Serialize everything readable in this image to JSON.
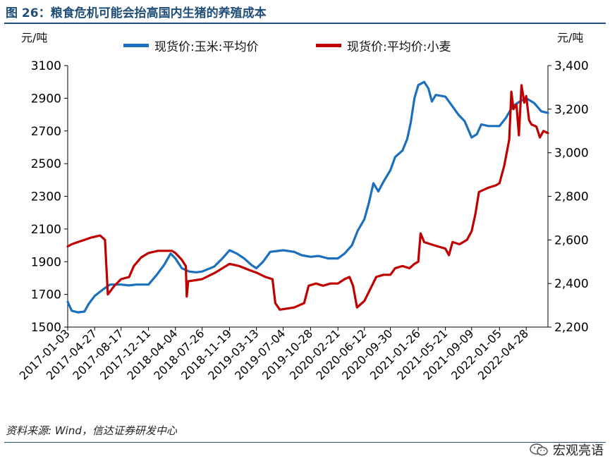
{
  "figure": {
    "title": "图 26：粮食危机可能会抬高国内生猪的养殖成本",
    "source": "资料来源: Wind，信达证券研发中心",
    "brand": "宏观亮语",
    "brand_icon": "wechat-icon"
  },
  "chart_data": {
    "type": "line",
    "left_unit": "元/吨",
    "right_unit": "元/吨",
    "left_ylim": [
      1500,
      3100
    ],
    "left_ticks": [
      "1500",
      "1700",
      "1900",
      "2100",
      "2300",
      "2500",
      "2700",
      "2900",
      "3100"
    ],
    "right_ylim": [
      2200,
      3400
    ],
    "right_ticks": [
      "2,200",
      "2,400",
      "2,600",
      "2,800",
      "3,000",
      "3,200",
      "3,400"
    ],
    "x_range": [
      "2017-01-03",
      "2022-07-29"
    ],
    "x_ticks": [
      "2017-01-03",
      "2017-04-27",
      "2017-08-17",
      "2017-12-11",
      "2018-04-04",
      "2018-07-26",
      "2018-11-19",
      "2019-03-13",
      "2019-07-04",
      "2019-10-28",
      "2020-02-21",
      "2020-06-12",
      "2020-09-30",
      "2021-01-26",
      "2021-05-21",
      "2021-09-09",
      "2022-01-05",
      "2022-04-28"
    ],
    "legend_position": "top",
    "grid": false,
    "series": [
      {
        "name": "现货价:玉米:平均价",
        "axis": "left",
        "color": "#1b6fbd",
        "points": [
          [
            "2017-01-03",
            1655
          ],
          [
            "2017-01-20",
            1600
          ],
          [
            "2017-02-15",
            1590
          ],
          [
            "2017-03-15",
            1595
          ],
          [
            "2017-04-01",
            1640
          ],
          [
            "2017-04-27",
            1690
          ],
          [
            "2017-06-01",
            1730
          ],
          [
            "2017-07-01",
            1760
          ],
          [
            "2017-08-17",
            1760
          ],
          [
            "2017-09-20",
            1755
          ],
          [
            "2017-10-20",
            1760
          ],
          [
            "2017-12-11",
            1760
          ],
          [
            "2018-01-15",
            1820
          ],
          [
            "2018-02-15",
            1880
          ],
          [
            "2018-03-15",
            1950
          ],
          [
            "2018-04-04",
            1920
          ],
          [
            "2018-05-01",
            1860
          ],
          [
            "2018-06-01",
            1840
          ],
          [
            "2018-07-01",
            1835
          ],
          [
            "2018-07-26",
            1840
          ],
          [
            "2018-09-15",
            1870
          ],
          [
            "2018-10-20",
            1920
          ],
          [
            "2018-11-19",
            1970
          ],
          [
            "2018-12-20",
            1950
          ],
          [
            "2019-01-20",
            1920
          ],
          [
            "2019-02-20",
            1880
          ],
          [
            "2019-03-13",
            1860
          ],
          [
            "2019-04-10",
            1900
          ],
          [
            "2019-05-10",
            1960
          ],
          [
            "2019-07-04",
            1970
          ],
          [
            "2019-08-20",
            1960
          ],
          [
            "2019-09-20",
            1940
          ],
          [
            "2019-10-28",
            1930
          ],
          [
            "2019-12-01",
            1935
          ],
          [
            "2020-01-10",
            1920
          ],
          [
            "2020-02-21",
            1920
          ],
          [
            "2020-03-20",
            1950
          ],
          [
            "2020-04-20",
            2000
          ],
          [
            "2020-05-15",
            2090
          ],
          [
            "2020-06-12",
            2160
          ],
          [
            "2020-07-01",
            2260
          ],
          [
            "2020-07-20",
            2380
          ],
          [
            "2020-08-10",
            2330
          ],
          [
            "2020-09-01",
            2390
          ],
          [
            "2020-09-30",
            2460
          ],
          [
            "2020-10-20",
            2540
          ],
          [
            "2020-11-20",
            2580
          ],
          [
            "2020-12-10",
            2650
          ],
          [
            "2020-12-25",
            2750
          ],
          [
            "2021-01-10",
            2900
          ],
          [
            "2021-01-26",
            2980
          ],
          [
            "2021-02-20",
            3000
          ],
          [
            "2021-03-10",
            2960
          ],
          [
            "2021-03-25",
            2880
          ],
          [
            "2021-04-10",
            2920
          ],
          [
            "2021-05-21",
            2910
          ],
          [
            "2021-06-15",
            2860
          ],
          [
            "2021-07-15",
            2800
          ],
          [
            "2021-08-10",
            2760
          ],
          [
            "2021-09-09",
            2660
          ],
          [
            "2021-10-01",
            2680
          ],
          [
            "2021-10-20",
            2740
          ],
          [
            "2021-11-20",
            2730
          ],
          [
            "2022-01-05",
            2730
          ],
          [
            "2022-02-01",
            2780
          ],
          [
            "2022-03-01",
            2850
          ],
          [
            "2022-04-01",
            2880
          ],
          [
            "2022-04-28",
            2900
          ],
          [
            "2022-06-01",
            2870
          ],
          [
            "2022-07-01",
            2820
          ],
          [
            "2022-07-29",
            2810
          ]
        ]
      },
      {
        "name": "现货价:平均价:小麦",
        "axis": "right",
        "color": "#c00000",
        "points": [
          [
            "2017-01-03",
            2570
          ],
          [
            "2017-01-20",
            2580
          ],
          [
            "2017-02-15",
            2590
          ],
          [
            "2017-03-15",
            2600
          ],
          [
            "2017-04-10",
            2610
          ],
          [
            "2017-05-20",
            2620
          ],
          [
            "2017-06-10",
            2600
          ],
          [
            "2017-06-22",
            2350
          ],
          [
            "2017-07-20",
            2390
          ],
          [
            "2017-08-17",
            2420
          ],
          [
            "2017-09-20",
            2430
          ],
          [
            "2017-10-10",
            2480
          ],
          [
            "2017-11-10",
            2520
          ],
          [
            "2017-12-11",
            2540
          ],
          [
            "2018-01-20",
            2550
          ],
          [
            "2018-03-20",
            2550
          ],
          [
            "2018-04-04",
            2540
          ],
          [
            "2018-04-30",
            2510
          ],
          [
            "2018-05-18",
            2480
          ],
          [
            "2018-05-22",
            2340
          ],
          [
            "2018-05-28",
            2410
          ],
          [
            "2018-07-26",
            2420
          ],
          [
            "2018-09-20",
            2450
          ],
          [
            "2018-11-19",
            2490
          ],
          [
            "2018-12-30",
            2480
          ],
          [
            "2019-02-15",
            2460
          ],
          [
            "2019-03-13",
            2450
          ],
          [
            "2019-04-20",
            2430
          ],
          [
            "2019-05-20",
            2420
          ],
          [
            "2019-06-01",
            2310
          ],
          [
            "2019-06-20",
            2280
          ],
          [
            "2019-08-20",
            2290
          ],
          [
            "2019-10-01",
            2310
          ],
          [
            "2019-10-20",
            2390
          ],
          [
            "2019-11-20",
            2400
          ],
          [
            "2019-12-20",
            2390
          ],
          [
            "2020-01-20",
            2400
          ],
          [
            "2020-02-21",
            2400
          ],
          [
            "2020-03-20",
            2420
          ],
          [
            "2020-04-10",
            2430
          ],
          [
            "2020-04-25",
            2390
          ],
          [
            "2020-05-12",
            2290
          ],
          [
            "2020-06-12",
            2320
          ],
          [
            "2020-07-05",
            2370
          ],
          [
            "2020-08-01",
            2430
          ],
          [
            "2020-09-01",
            2440
          ],
          [
            "2020-09-30",
            2440
          ],
          [
            "2020-10-20",
            2470
          ],
          [
            "2020-11-20",
            2480
          ],
          [
            "2020-12-20",
            2470
          ],
          [
            "2021-01-10",
            2490
          ],
          [
            "2021-01-26",
            2500
          ],
          [
            "2021-02-05",
            2630
          ],
          [
            "2021-02-20",
            2590
          ],
          [
            "2021-03-20",
            2580
          ],
          [
            "2021-04-20",
            2570
          ],
          [
            "2021-05-21",
            2560
          ],
          [
            "2021-06-05",
            2530
          ],
          [
            "2021-06-20",
            2590
          ],
          [
            "2021-07-20",
            2580
          ],
          [
            "2021-08-20",
            2600
          ],
          [
            "2021-09-09",
            2640
          ],
          [
            "2021-09-25",
            2720
          ],
          [
            "2021-10-10",
            2820
          ],
          [
            "2021-11-20",
            2840
          ],
          [
            "2021-12-20",
            2850
          ],
          [
            "2022-01-05",
            2860
          ],
          [
            "2022-01-25",
            2940
          ],
          [
            "2022-02-15",
            3060
          ],
          [
            "2022-02-24",
            3280
          ],
          [
            "2022-03-05",
            3200
          ],
          [
            "2022-03-18",
            3220
          ],
          [
            "2022-03-28",
            3080
          ],
          [
            "2022-04-08",
            3310
          ],
          [
            "2022-04-20",
            3230
          ],
          [
            "2022-04-28",
            3260
          ],
          [
            "2022-05-10",
            3150
          ],
          [
            "2022-05-20",
            3130
          ],
          [
            "2022-06-10",
            3120
          ],
          [
            "2022-06-25",
            3070
          ],
          [
            "2022-07-10",
            3100
          ],
          [
            "2022-07-29",
            3090
          ]
        ]
      }
    ]
  }
}
